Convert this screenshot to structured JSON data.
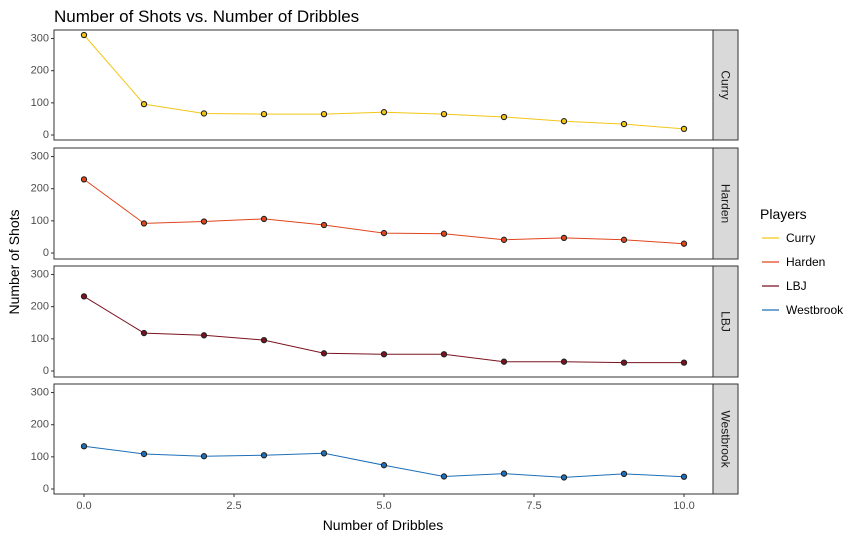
{
  "chart_data": {
    "type": "line",
    "title": "Number of Shots vs. Number of Dribbles",
    "xlabel": "Number of Dribbles",
    "ylabel": "Number of Shots",
    "xlim": [
      0,
      10
    ],
    "ylim": [
      0,
      310
    ],
    "x_ticks": [
      0.0,
      2.5,
      5.0,
      7.5,
      10.0
    ],
    "x_tick_labels": [
      "0.0",
      "2.5",
      "5.0",
      "7.5",
      "10.0"
    ],
    "y_ticks": [
      0,
      100,
      200,
      300
    ],
    "y_tick_labels": [
      "0",
      "100",
      "200",
      "300"
    ],
    "grid": false,
    "legend_placement": "right",
    "legend_title": "Players",
    "facet": "rows",
    "x": [
      0,
      1,
      2,
      3,
      4,
      5,
      6,
      7,
      8,
      9,
      10
    ],
    "series": [
      {
        "name": "Curry",
        "color": "#F2C618",
        "values": [
          311,
          96,
          67,
          65,
          65,
          71,
          65,
          56,
          43,
          34,
          19
        ]
      },
      {
        "name": "Harden",
        "color": "#E0451C",
        "values": [
          229,
          92,
          98,
          106,
          87,
          62,
          60,
          41,
          47,
          41,
          29
        ]
      },
      {
        "name": "LBJ",
        "color": "#7A1220",
        "values": [
          232,
          118,
          111,
          96,
          55,
          52,
          52,
          29,
          29,
          26,
          26
        ]
      },
      {
        "name": "Westbrook",
        "color": "#1E6FB8",
        "values": [
          133,
          109,
          102,
          105,
          111,
          74,
          39,
          48,
          36,
          47,
          38
        ]
      }
    ]
  }
}
